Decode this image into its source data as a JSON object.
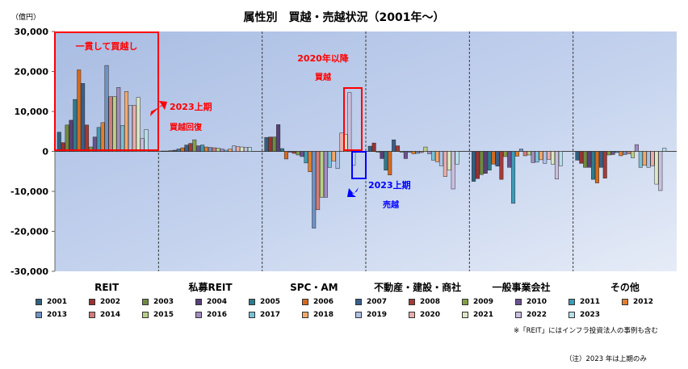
{
  "chart_data": {
    "type": "bar",
    "title": "属性別　買越・売越状況（2001年～）",
    "unit_label": "（億円）",
    "ylim": [
      -30000,
      30000
    ],
    "y_ticks": [
      "30,000",
      "20,000",
      "10,000",
      "0",
      "-10,000",
      "-20,000",
      "-30,000"
    ],
    "y_tick_values": [
      30000,
      20000,
      10000,
      0,
      -10000,
      -20000,
      -30000
    ],
    "categories": [
      "REIT",
      "私募REIT",
      "SPC・AM",
      "不動産・建設・商社",
      "一般事業会社",
      "その他"
    ],
    "series": [
      {
        "name": "2001",
        "color": "#31607f",
        "values": [
          4800,
          100,
          3500,
          1300,
          -7500,
          -2200
        ]
      },
      {
        "name": "2002",
        "color": "#9b3131",
        "values": [
          2200,
          100,
          3600,
          2100,
          -6800,
          -3000
        ]
      },
      {
        "name": "2003",
        "color": "#6f8a3f",
        "values": [
          6600,
          200,
          3600,
          -200,
          -5800,
          -4000
        ]
      },
      {
        "name": "2004",
        "color": "#5a3f78",
        "values": [
          7800,
          300,
          6700,
          -1800,
          -5500,
          -4000
        ]
      },
      {
        "name": "2005",
        "color": "#2e7b8c",
        "values": [
          13000,
          600,
          700,
          -4700,
          -4700,
          -7000
        ]
      },
      {
        "name": "2006",
        "color": "#d46a1e",
        "values": [
          20400,
          900,
          -1900,
          -5900,
          -3200,
          -7900
        ]
      },
      {
        "name": "2007",
        "color": "#3b5e88",
        "values": [
          17000,
          1600,
          -200,
          2900,
          -3700,
          -4000
        ]
      },
      {
        "name": "2008",
        "color": "#a33b38",
        "values": [
          6600,
          2000,
          -500,
          1400,
          -7000,
          -6700
        ]
      },
      {
        "name": "2009",
        "color": "#829e47",
        "values": [
          1100,
          2900,
          -900,
          -200,
          -1300,
          -900
        ]
      },
      {
        "name": "2010",
        "color": "#6c518f",
        "values": [
          3600,
          1400,
          -1300,
          -1800,
          -4000,
          -800
        ]
      },
      {
        "name": "2011",
        "color": "#3b9cb8",
        "values": [
          6000,
          1600,
          -2900,
          -200,
          -13000,
          -300
        ]
      },
      {
        "name": "2012",
        "color": "#e37f2c",
        "values": [
          7200,
          1100,
          -5100,
          -600,
          -1200,
          -1100
        ]
      },
      {
        "name": "2013",
        "color": "#6f92c4",
        "values": [
          21500,
          1000,
          -19200,
          -500,
          600,
          -800
        ]
      },
      {
        "name": "2014",
        "color": "#d07c7a",
        "values": [
          13700,
          900,
          -14600,
          -300,
          -1100,
          -600
        ]
      },
      {
        "name": "2015",
        "color": "#b9cf86",
        "values": [
          13700,
          800,
          -11500,
          1100,
          -900,
          -1600
        ]
      },
      {
        "name": "2016",
        "color": "#a28cc1",
        "values": [
          16000,
          600,
          -11500,
          -600,
          -2800,
          1700
        ]
      },
      {
        "name": "2017",
        "color": "#79c1d6",
        "values": [
          6500,
          300,
          -4000,
          -2200,
          -2700,
          -4000
        ]
      },
      {
        "name": "2018",
        "color": "#f5a86a",
        "values": [
          15000,
          600,
          -2400,
          -2600,
          -2100,
          -3500
        ]
      },
      {
        "name": "2019",
        "color": "#aec2e6",
        "values": [
          11500,
          1400,
          -4300,
          -3600,
          -3000,
          -4000
        ]
      },
      {
        "name": "2020",
        "color": "#e8aeac",
        "values": [
          11500,
          1200,
          4600,
          -6300,
          -2000,
          -3600
        ]
      },
      {
        "name": "2021",
        "color": "#dbe8c3",
        "values": [
          13500,
          1100,
          4300,
          -4700,
          -3200,
          -8200
        ]
      },
      {
        "name": "2022",
        "color": "#c9bfdf",
        "values": [
          3200,
          1000,
          14700,
          -9400,
          -6900,
          -9800
        ]
      },
      {
        "name": "2023",
        "color": "#b6e0e9",
        "values": [
          5500,
          1000,
          -3500,
          -3200,
          -3600,
          800
        ]
      }
    ],
    "annotations": [
      {
        "text": "一貫して買越し",
        "color": "#ff0000"
      },
      {
        "text": "2023上期",
        "color": "#ff0000"
      },
      {
        "text": "買越回復",
        "color": "#ff0000"
      },
      {
        "text": "2020年以降",
        "color": "#ff0000"
      },
      {
        "text": "買越",
        "color": "#ff0000"
      },
      {
        "text": "2023上期",
        "color": "#0000ff"
      },
      {
        "text": "売越",
        "color": "#0000ff"
      }
    ],
    "grid": false,
    "legend_position": "bottom"
  },
  "notes": {
    "infra": "※「REIT」にはインフラ投資法人の事例も含む",
    "footnote": "（注）2023 年は上期のみ"
  }
}
